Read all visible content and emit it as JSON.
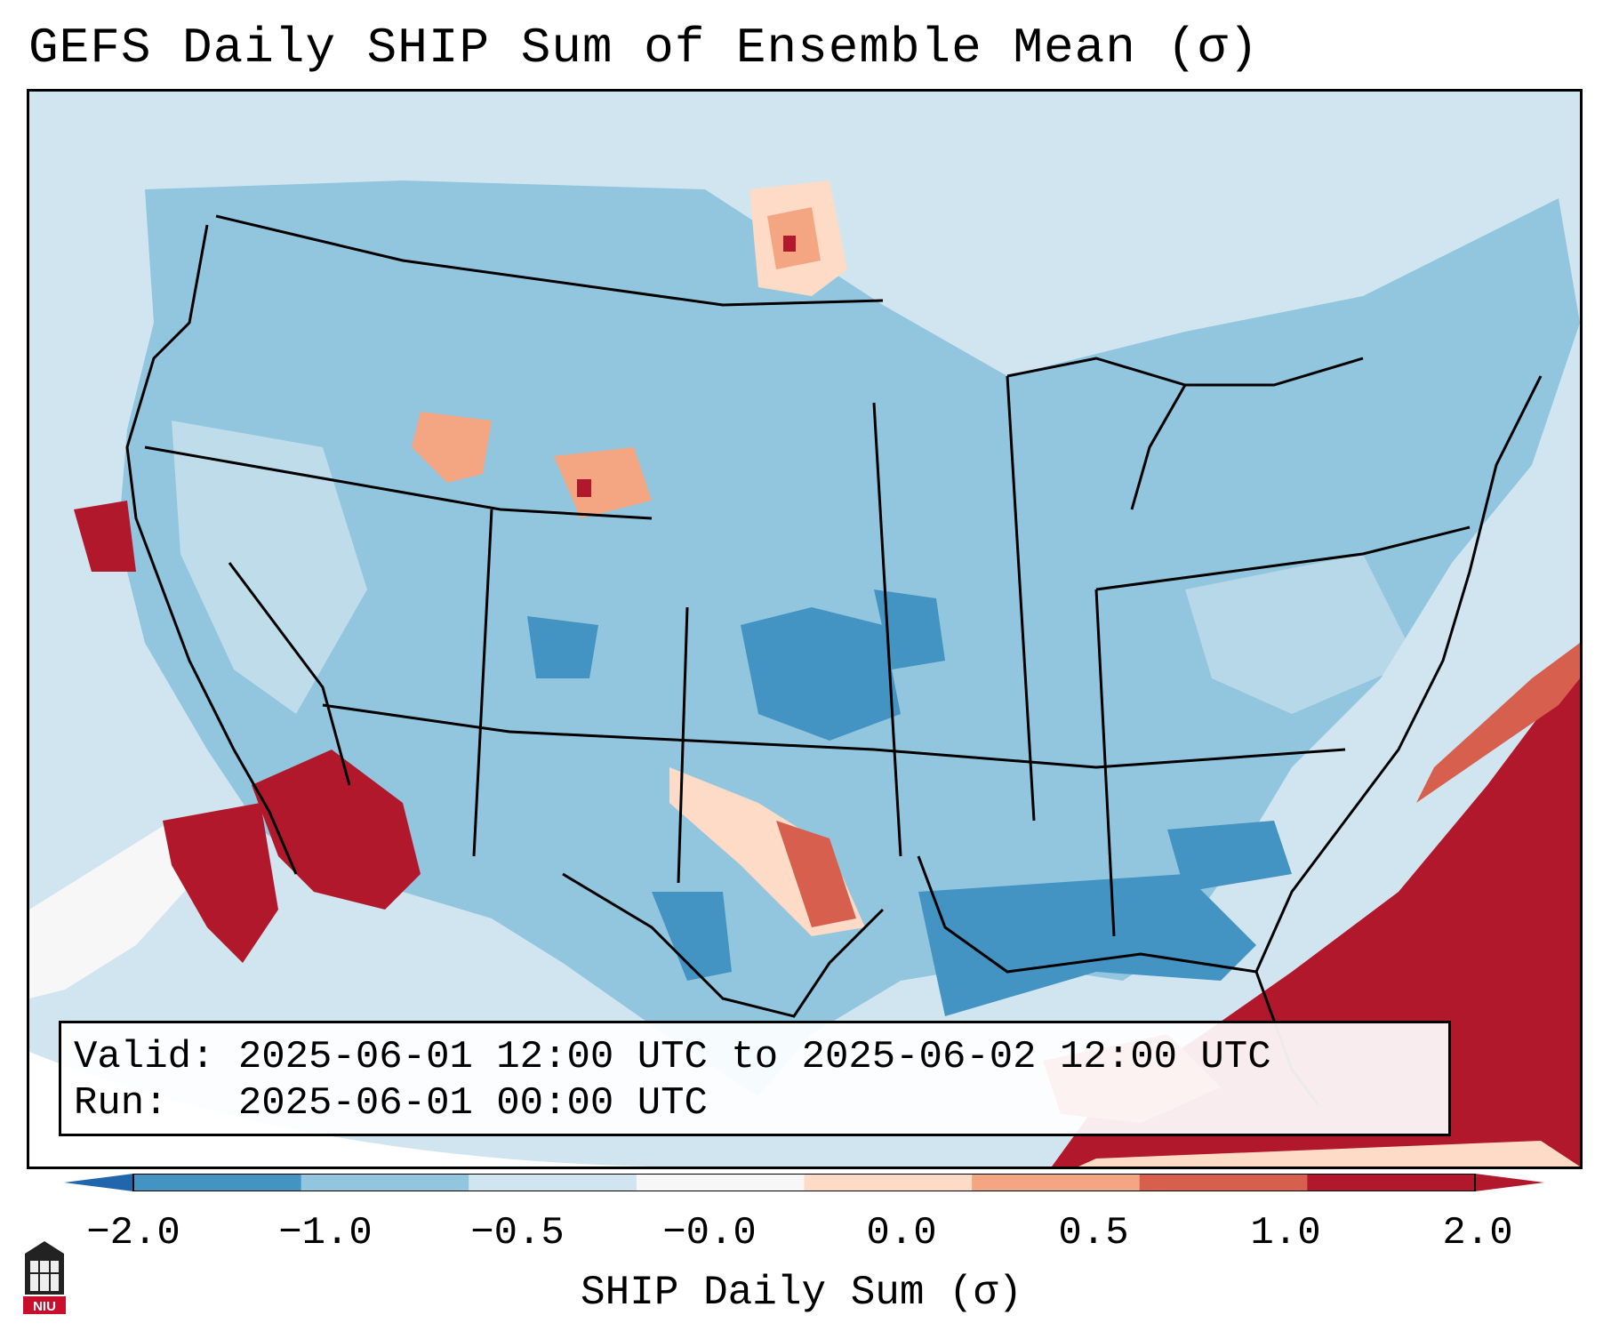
{
  "title": "GEFS Daily SHIP Sum of Ensemble Mean (σ)",
  "info_box": {
    "valid_line": "Valid: 2025-06-01 12:00 UTC to 2025-06-02 12:00 UTC",
    "run_line": "Run:   2025-06-01 00:00 UTC"
  },
  "colorbar": {
    "label": "SHIP Daily Sum (σ)",
    "ticks": [
      "−2.0",
      "−1.0",
      "−0.5",
      "−0.0",
      "0.0",
      "0.5",
      "1.0",
      "2.0"
    ],
    "colors": [
      "#4393c3",
      "#92c5de",
      "#d1e5f0",
      "#f7f7f7",
      "#fddbc7",
      "#f4a582",
      "#d6604d",
      "#b2182b"
    ],
    "extend_low_color": "#2166ac",
    "extend_high_color": "#b2182b"
  },
  "logo": {
    "text": "NIU",
    "color": "#c8102e"
  },
  "map": {
    "region": "Contiguous United States",
    "ocean_color": "#d1e5f0",
    "boundary_color": "#000000"
  }
}
